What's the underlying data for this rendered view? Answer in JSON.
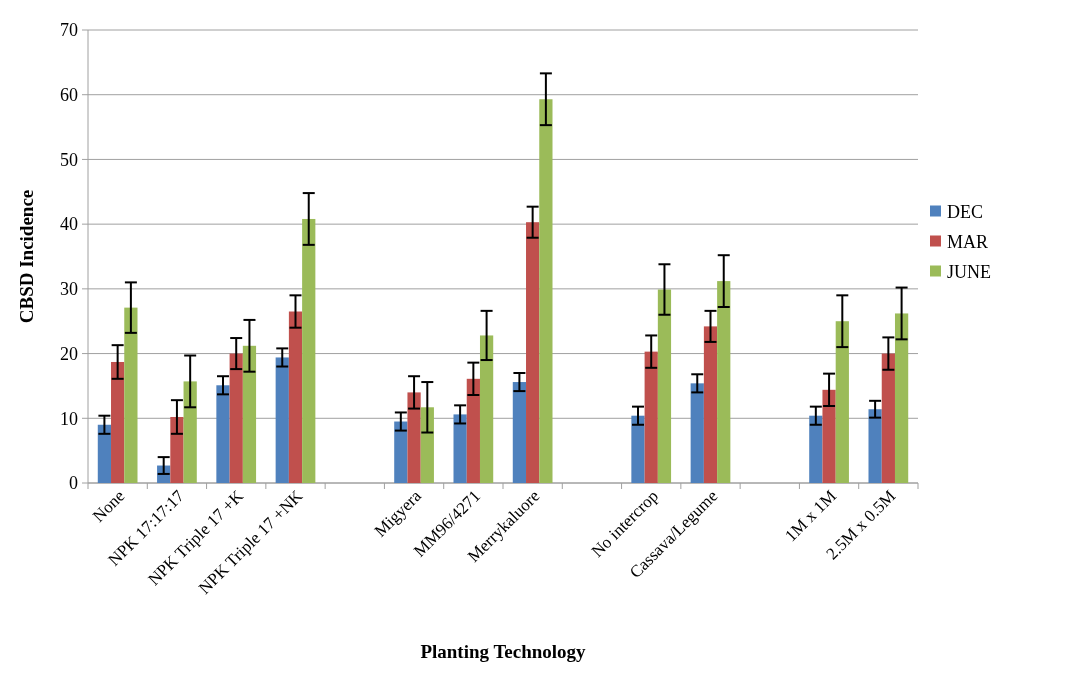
{
  "chart_data": {
    "type": "bar",
    "xlabel": "Planting Technology",
    "ylabel": "CBSD Incidence",
    "categories": [
      "None",
      "NPK 17:17:17",
      "NPK Triple 17 +K",
      "NPK Triple 17 +NK",
      null,
      "Migyera",
      "MM96/4271",
      "Merrykaluore",
      null,
      "No intercrop",
      "Cassava/Legume",
      null,
      "1M x 1M",
      "2.5M x 0.5M"
    ],
    "series": [
      {
        "name": "DEC",
        "color": "#4f81bd",
        "values": [
          9,
          2.7,
          15.1,
          19.4,
          null,
          9.5,
          10.6,
          15.6,
          null,
          10.4,
          15.4,
          null,
          10.4,
          11.4
        ],
        "errors": [
          1.4,
          1.3,
          1.4,
          1.4,
          null,
          1.4,
          1.4,
          1.4,
          null,
          1.4,
          1.4,
          null,
          1.4,
          1.3
        ]
      },
      {
        "name": "MAR",
        "color": "#c0504d",
        "values": [
          18.7,
          10.2,
          20,
          26.5,
          null,
          14,
          16.1,
          40.3,
          null,
          20.3,
          24.2,
          null,
          14.4,
          20
        ],
        "errors": [
          2.6,
          2.6,
          2.4,
          2.5,
          null,
          2.5,
          2.5,
          2.4,
          null,
          2.5,
          2.4,
          null,
          2.5,
          2.5
        ]
      },
      {
        "name": "JUNE",
        "color": "#9bbb59",
        "values": [
          27.1,
          15.7,
          21.2,
          40.8,
          null,
          11.7,
          22.8,
          59.3,
          null,
          29.9,
          31.2,
          null,
          25,
          26.2
        ],
        "errors": [
          3.9,
          4,
          4,
          4,
          null,
          3.9,
          3.8,
          4,
          null,
          3.9,
          4,
          null,
          4,
          4
        ]
      }
    ],
    "ylim": [
      0,
      70
    ],
    "yticks": [
      0,
      10,
      20,
      30,
      40,
      50,
      60,
      70
    ],
    "grid": "y",
    "legend": "right"
  }
}
